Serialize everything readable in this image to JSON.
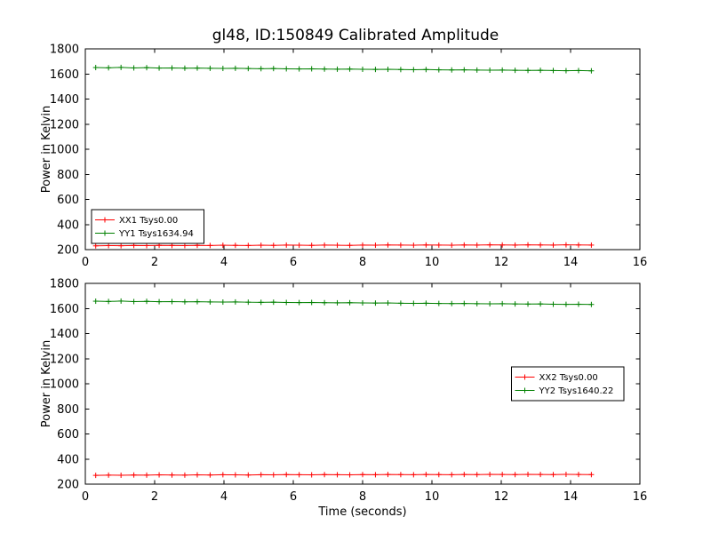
{
  "title": "gl48, ID:150849 Calibrated Amplitude",
  "colors": {
    "xx_series": "#ff0000",
    "yy_series": "#008000",
    "frame": "#000000",
    "background": "#ffffff"
  },
  "chart_data": [
    {
      "type": "line",
      "subplot": "top",
      "xlabel": "",
      "ylabel": "Power in Kelvin",
      "xlim": [
        0,
        16
      ],
      "ylim": [
        200,
        1800
      ],
      "xticks": [
        0,
        2,
        4,
        6,
        8,
        10,
        12,
        14,
        16
      ],
      "yticks": [
        200,
        400,
        600,
        800,
        1000,
        1200,
        1400,
        1600,
        1800
      ],
      "grid": false,
      "legend_loc": "lower left",
      "series": [
        {
          "name": "XX1 Tsys0.00",
          "color": "#ff0000",
          "marker": "+",
          "x": [
            0.3,
            0.67,
            1.03,
            1.4,
            1.77,
            2.13,
            2.5,
            2.87,
            3.23,
            3.6,
            3.97,
            4.33,
            4.7,
            5.07,
            5.43,
            5.8,
            6.17,
            6.53,
            6.9,
            7.27,
            7.63,
            8.0,
            8.37,
            8.73,
            9.1,
            9.47,
            9.83,
            10.2,
            10.57,
            10.93,
            11.3,
            11.67,
            12.03,
            12.4,
            12.77,
            13.13,
            13.5,
            13.87,
            14.23,
            14.6
          ],
          "y": [
            230,
            232,
            231,
            233,
            232,
            234,
            233,
            232,
            234,
            233,
            235,
            234,
            233,
            235,
            234,
            236,
            235,
            234,
            236,
            235,
            234,
            236,
            235,
            237,
            236,
            235,
            237,
            236,
            235,
            237,
            236,
            238,
            237,
            236,
            238,
            237,
            236,
            238,
            237,
            236
          ]
        },
        {
          "name": "YY1 Tsys1634.94",
          "color": "#008000",
          "marker": "+",
          "x": [
            0.3,
            0.67,
            1.03,
            1.4,
            1.77,
            2.13,
            2.5,
            2.87,
            3.23,
            3.6,
            3.97,
            4.33,
            4.7,
            5.07,
            5.43,
            5.8,
            6.17,
            6.53,
            6.9,
            7.27,
            7.63,
            8.0,
            8.37,
            8.73,
            9.1,
            9.47,
            9.83,
            10.2,
            10.57,
            10.93,
            11.3,
            11.67,
            12.03,
            12.4,
            12.77,
            13.13,
            13.5,
            13.87,
            14.23,
            14.6
          ],
          "y": [
            1651,
            1649,
            1652,
            1648,
            1650,
            1647,
            1648,
            1646,
            1647,
            1645,
            1644,
            1645,
            1643,
            1642,
            1643,
            1641,
            1640,
            1641,
            1639,
            1638,
            1639,
            1637,
            1636,
            1637,
            1635,
            1634,
            1635,
            1633,
            1632,
            1633,
            1631,
            1630,
            1631,
            1629,
            1628,
            1629,
            1627,
            1626,
            1627,
            1625
          ]
        }
      ]
    },
    {
      "type": "line",
      "subplot": "bottom",
      "xlabel": "Time (seconds)",
      "ylabel": "Power in Kelvin",
      "xlim": [
        0,
        16
      ],
      "ylim": [
        200,
        1800
      ],
      "xticks": [
        0,
        2,
        4,
        6,
        8,
        10,
        12,
        14,
        16
      ],
      "yticks": [
        200,
        400,
        600,
        800,
        1000,
        1200,
        1400,
        1600,
        1800
      ],
      "grid": false,
      "legend_loc": "center right",
      "series": [
        {
          "name": "XX2 Tsys0.00",
          "color": "#ff0000",
          "marker": "+",
          "x": [
            0.3,
            0.67,
            1.03,
            1.4,
            1.77,
            2.13,
            2.5,
            2.87,
            3.23,
            3.6,
            3.97,
            4.33,
            4.7,
            5.07,
            5.43,
            5.8,
            6.17,
            6.53,
            6.9,
            7.27,
            7.63,
            8.0,
            8.37,
            8.73,
            9.1,
            9.47,
            9.83,
            10.2,
            10.57,
            10.93,
            11.3,
            11.67,
            12.03,
            12.4,
            12.77,
            13.13,
            13.5,
            13.87,
            14.23,
            14.6
          ],
          "y": [
            270,
            272,
            271,
            273,
            272,
            274,
            273,
            272,
            274,
            273,
            275,
            274,
            273,
            275,
            274,
            276,
            275,
            274,
            276,
            275,
            274,
            276,
            275,
            277,
            276,
            275,
            277,
            276,
            275,
            277,
            276,
            278,
            277,
            276,
            278,
            277,
            276,
            278,
            277,
            276
          ]
        },
        {
          "name": "YY2 Tsys1640.22",
          "color": "#008000",
          "marker": "+",
          "x": [
            0.3,
            0.67,
            1.03,
            1.4,
            1.77,
            2.13,
            2.5,
            2.87,
            3.23,
            3.6,
            3.97,
            4.33,
            4.7,
            5.07,
            5.43,
            5.8,
            6.17,
            6.53,
            6.9,
            7.27,
            7.63,
            8.0,
            8.37,
            8.73,
            9.1,
            9.47,
            9.83,
            10.2,
            10.57,
            10.93,
            11.3,
            11.67,
            12.03,
            12.4,
            12.77,
            13.13,
            13.5,
            13.87,
            14.23,
            14.6
          ],
          "y": [
            1658,
            1656,
            1659,
            1655,
            1657,
            1654,
            1655,
            1653,
            1654,
            1652,
            1651,
            1652,
            1650,
            1649,
            1650,
            1648,
            1647,
            1648,
            1646,
            1645,
            1646,
            1644,
            1643,
            1644,
            1642,
            1641,
            1642,
            1640,
            1639,
            1640,
            1638,
            1637,
            1638,
            1636,
            1635,
            1636,
            1634,
            1633,
            1634,
            1632
          ]
        }
      ]
    }
  ]
}
